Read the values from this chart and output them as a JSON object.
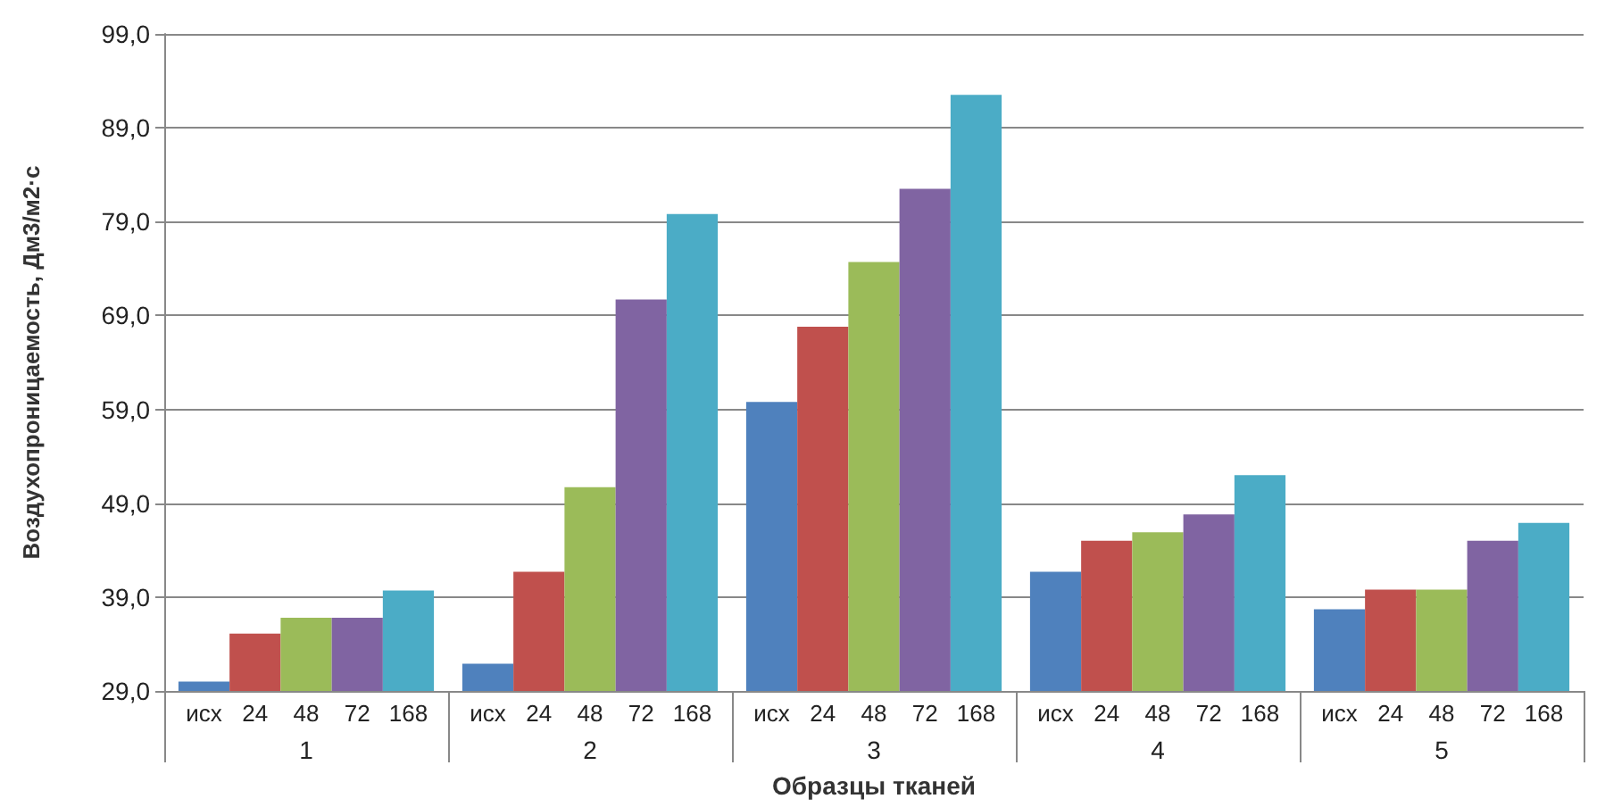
{
  "chart_data": {
    "type": "bar",
    "xlabel": "Образцы тканей",
    "ylabel": "Воздухопроницаемость, Дм3/м2·с",
    "categories": [
      "1",
      "2",
      "3",
      "4",
      "5"
    ],
    "series": [
      {
        "name": "исх",
        "color": "#4f81bd",
        "values": [
          30,
          31.9,
          59.8,
          41.7,
          37.7
        ]
      },
      {
        "name": "24",
        "color": "#c0504d",
        "values": [
          35.1,
          41.7,
          67.8,
          45,
          39.8
        ]
      },
      {
        "name": "48",
        "color": "#9bbb59",
        "values": [
          36.8,
          50.7,
          74.7,
          45.9,
          39.8
        ]
      },
      {
        "name": "72",
        "color": "#8064a2",
        "values": [
          36.8,
          70.7,
          82.5,
          47.8,
          45
        ]
      },
      {
        "name": "168",
        "color": "#4bacc6",
        "values": [
          39.7,
          79.8,
          92.5,
          52,
          46.9
        ]
      }
    ],
    "ylim": [
      29,
      99
    ],
    "yticks": [
      {
        "value": 29,
        "label": "29,0"
      },
      {
        "value": 39,
        "label": "39,0"
      },
      {
        "value": 49,
        "label": "49,0"
      },
      {
        "value": 59,
        "label": "59,0"
      },
      {
        "value": 69,
        "label": "69,0"
      },
      {
        "value": 79,
        "label": "79,0"
      },
      {
        "value": 89,
        "label": "89,0"
      },
      {
        "value": 99,
        "label": "99,0"
      }
    ],
    "grid": "y",
    "legend": false
  }
}
